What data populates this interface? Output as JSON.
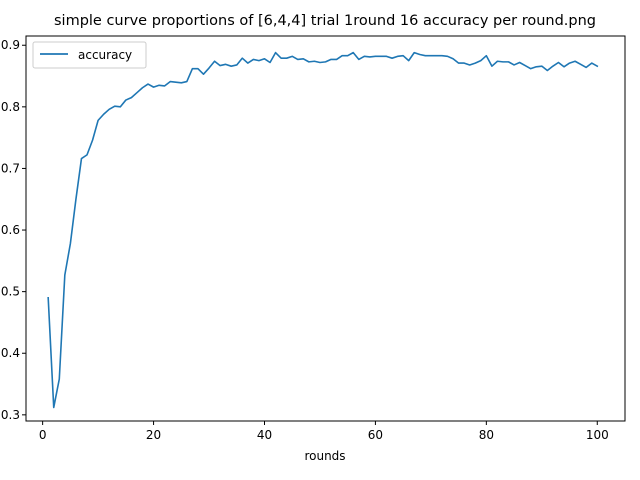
{
  "chart_data": {
    "type": "line",
    "title": "simple curve proportions of [6,4,4] trial 1round 16 accuracy per round.png",
    "xlabel": "rounds",
    "ylabel": "",
    "xlim": [
      -3,
      105
    ],
    "ylim": [
      0.29,
      0.915
    ],
    "xticks": [
      0,
      20,
      40,
      60,
      80,
      100
    ],
    "yticks": [
      0.3,
      0.4,
      0.5,
      0.6,
      0.7,
      0.8,
      0.9
    ],
    "ytick_labels": [
      "0.3",
      "0.4",
      "0.5",
      "0.6",
      "0.7",
      "0.8",
      "0.9"
    ],
    "grid": false,
    "legend": {
      "placement": "upper-left"
    },
    "series": [
      {
        "name": "accuracy",
        "color": "#1f77b4",
        "x": [
          1,
          2,
          3,
          4,
          5,
          6,
          7,
          8,
          9,
          10,
          11,
          12,
          13,
          14,
          15,
          16,
          17,
          18,
          19,
          20,
          21,
          22,
          23,
          24,
          25,
          26,
          27,
          28,
          29,
          30,
          31,
          32,
          33,
          34,
          35,
          36,
          37,
          38,
          39,
          40,
          41,
          42,
          43,
          44,
          45,
          46,
          47,
          48,
          49,
          50,
          51,
          52,
          53,
          54,
          55,
          56,
          57,
          58,
          59,
          60,
          61,
          62,
          63,
          64,
          65,
          66,
          67,
          68,
          69,
          70,
          71,
          72,
          73,
          74,
          75,
          76,
          77,
          78,
          79,
          80,
          81,
          82,
          83,
          84,
          85,
          86,
          87,
          88,
          89,
          90,
          91,
          92,
          93,
          94,
          95,
          96,
          97,
          98,
          99,
          100
        ],
        "values": [
          0.49,
          0.312,
          0.358,
          0.527,
          0.578,
          0.65,
          0.716,
          0.722,
          0.746,
          0.778,
          0.788,
          0.796,
          0.801,
          0.8,
          0.811,
          0.815,
          0.823,
          0.831,
          0.837,
          0.832,
          0.835,
          0.834,
          0.841,
          0.84,
          0.839,
          0.841,
          0.862,
          0.862,
          0.853,
          0.863,
          0.874,
          0.867,
          0.869,
          0.866,
          0.868,
          0.879,
          0.871,
          0.877,
          0.875,
          0.878,
          0.872,
          0.888,
          0.879,
          0.879,
          0.882,
          0.877,
          0.878,
          0.873,
          0.874,
          0.872,
          0.873,
          0.877,
          0.877,
          0.883,
          0.883,
          0.888,
          0.877,
          0.882,
          0.881,
          0.882,
          0.882,
          0.882,
          0.879,
          0.882,
          0.883,
          0.875,
          0.888,
          0.885,
          0.883,
          0.883,
          0.883,
          0.883,
          0.882,
          0.878,
          0.871,
          0.871,
          0.868,
          0.871,
          0.875,
          0.883,
          0.866,
          0.874,
          0.873,
          0.873,
          0.868,
          0.872,
          0.867,
          0.862,
          0.865,
          0.866,
          0.859,
          0.866,
          0.872,
          0.865,
          0.871,
          0.874,
          0.869,
          0.864,
          0.871,
          0.866
        ]
      }
    ]
  }
}
